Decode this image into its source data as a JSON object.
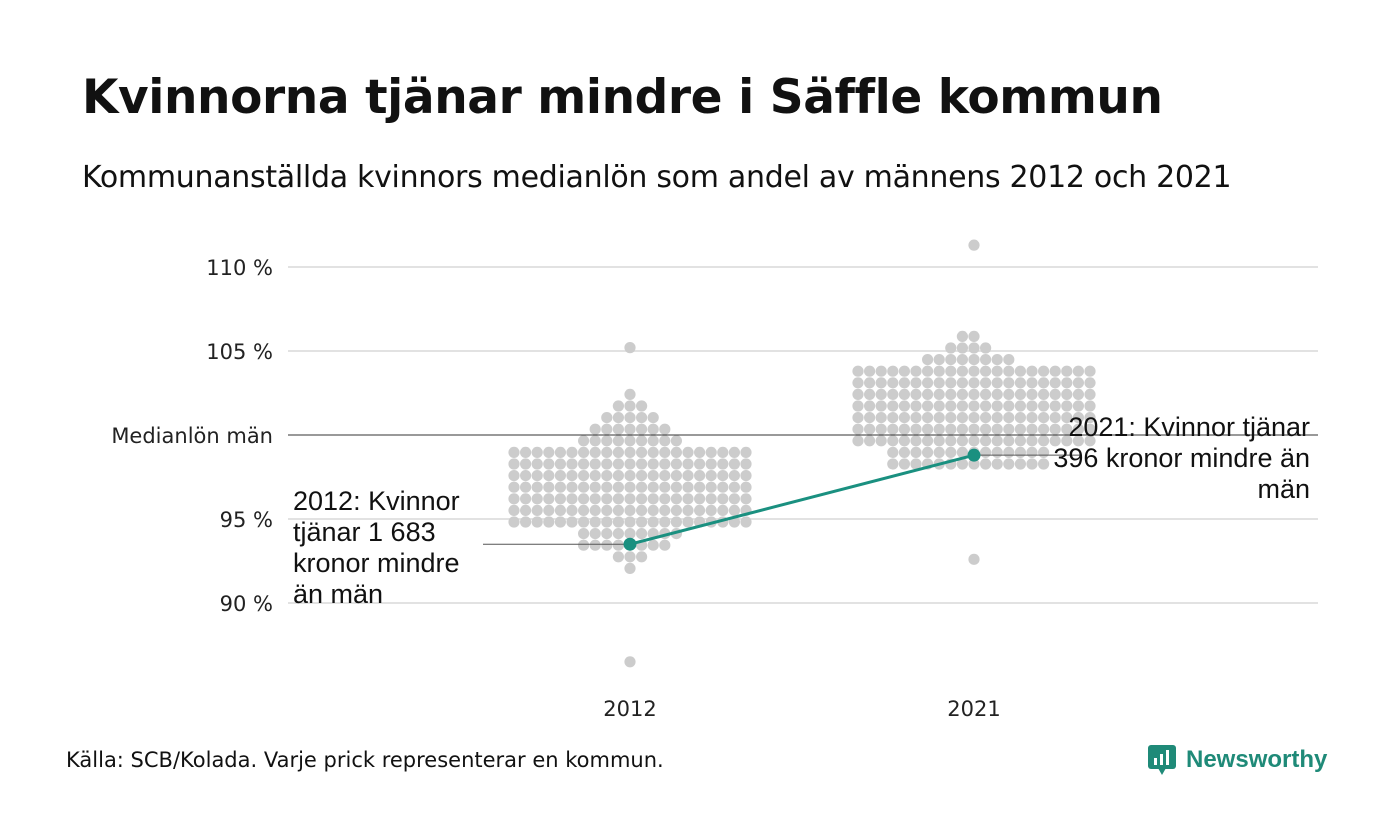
{
  "title": "Kvinnorna tjänar mindre i Säffle kommun",
  "subtitle": "Kommunanställda kvinnors medianlön som andel av männens 2012 och 2021",
  "source": "Källa: SCB/Kolada. Varje prick representerar en kommun.",
  "brand": {
    "name": "Newsworthy",
    "color": "#1f8a78"
  },
  "colors": {
    "dots": "#cccccc",
    "highlight": "#1a9080",
    "grid": "#e2e2e2",
    "reference": "#333333"
  },
  "chart_data": {
    "type": "scatter",
    "subtype": "beeswarm",
    "categories": [
      "2012",
      "2021"
    ],
    "y_ticks": [
      {
        "value": 90,
        "label": "90 %"
      },
      {
        "value": 95,
        "label": "95 %"
      },
      {
        "value": 100,
        "label": "Medianlön män"
      },
      {
        "value": 105,
        "label": "105 %"
      },
      {
        "value": 110,
        "label": "110 %"
      }
    ],
    "ylim": [
      86,
      112
    ],
    "grid": true,
    "highlight": {
      "values": [
        93.5,
        98.8
      ],
      "annotations": [
        "2012: Kvinnor tjänar 1 683 kronor mindre än män",
        "2021: Kvinnor tjänar 396 kronor mindre än män"
      ]
    },
    "distribution": [
      {
        "category": "2012",
        "min": 86.5,
        "max": 105.2,
        "center": 97.0,
        "spread": 2.6
      },
      {
        "category": "2021",
        "min": 92.6,
        "max": 111.3,
        "center": 101.3,
        "spread": 2.4
      }
    ]
  }
}
